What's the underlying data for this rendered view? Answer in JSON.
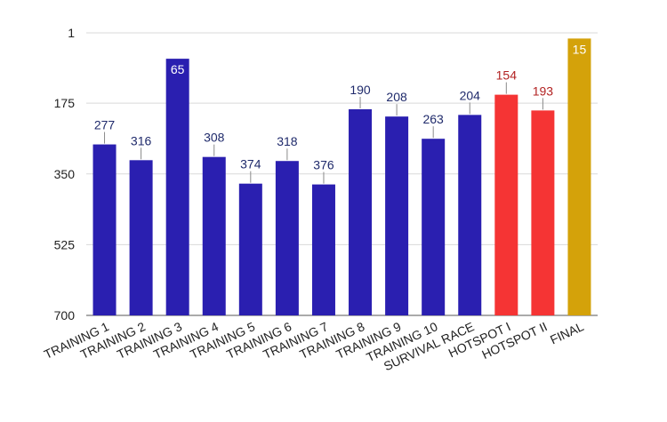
{
  "chart_data": {
    "type": "bar",
    "title": "",
    "xlabel": "",
    "ylabel": "",
    "y_reversed": true,
    "ylim": [
      1,
      700
    ],
    "yticks": [
      1,
      175,
      350,
      525,
      700
    ],
    "grid": true,
    "legend": "none",
    "categories": [
      "TRAINING 1",
      "TRAINING 2",
      "TRAINING 3",
      "TRAINING 4",
      "TRAINING 5",
      "TRAINING 6",
      "TRAINING 7",
      "TRAINING 8",
      "TRAINING 9",
      "TRAINING 10",
      "SURVIVAL RACE",
      "HOTSPOT I",
      "HOTSPOT II",
      "FINAL"
    ],
    "values": [
      277,
      316,
      65,
      308,
      374,
      318,
      376,
      190,
      208,
      263,
      204,
      154,
      193,
      15
    ],
    "bar_colors": [
      "#2a1fb0",
      "#2a1fb0",
      "#2a1fb0",
      "#2a1fb0",
      "#2a1fb0",
      "#2a1fb0",
      "#2a1fb0",
      "#2a1fb0",
      "#2a1fb0",
      "#2a1fb0",
      "#2a1fb0",
      "#f53434",
      "#f53434",
      "#d4a20a"
    ],
    "label_colors": [
      "#1f2a6b",
      "#1f2a6b",
      "#ffffff",
      "#1f2a6b",
      "#1f2a6b",
      "#1f2a6b",
      "#1f2a6b",
      "#1f2a6b",
      "#1f2a6b",
      "#1f2a6b",
      "#1f2a6b",
      "#b22222",
      "#b22222",
      "#ffffff"
    ],
    "label_inside": [
      false,
      false,
      true,
      false,
      false,
      false,
      false,
      false,
      false,
      false,
      false,
      false,
      false,
      true
    ]
  }
}
